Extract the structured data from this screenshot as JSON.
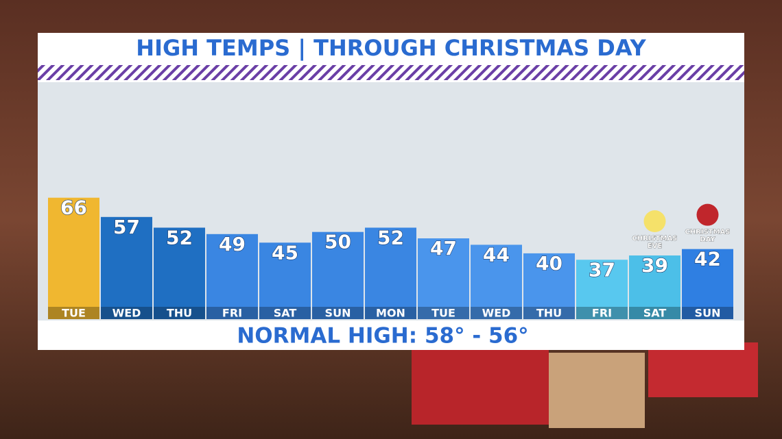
{
  "chart_data": {
    "type": "bar",
    "title": "HIGH TEMPS | THROUGH CHRISTMAS DAY",
    "footer": "NORMAL HIGH: 58° - 56°",
    "categories": [
      "TUE",
      "WED",
      "THU",
      "FRI",
      "SAT",
      "SUN",
      "MON",
      "TUE",
      "WED",
      "THU",
      "FRI",
      "SAT",
      "SUN"
    ],
    "values": [
      66,
      57,
      52,
      49,
      45,
      50,
      52,
      47,
      44,
      40,
      37,
      39,
      42
    ],
    "colors": [
      "#f0b730",
      "#1f6fc2",
      "#1f6fc2",
      "#3a86e2",
      "#3a86e2",
      "#3a86e2",
      "#3a86e2",
      "#4a95ec",
      "#4a95ec",
      "#4a95ec",
      "#58c8ef",
      "#4cbfe8",
      "#2f7fe2"
    ],
    "annotations": [
      null,
      null,
      null,
      null,
      null,
      null,
      null,
      null,
      null,
      null,
      null,
      "CHRISTMAS EVE",
      "CHRISTMAS DAY"
    ],
    "ylim": [
      15,
      120
    ]
  }
}
